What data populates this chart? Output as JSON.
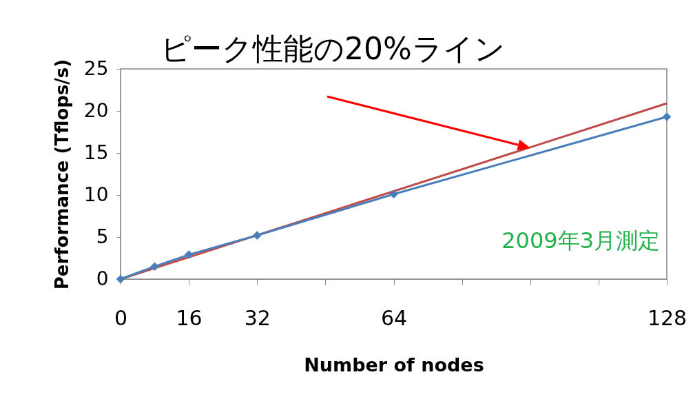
{
  "chart_data": {
    "type": "line",
    "xlabel": "Number of nodes",
    "ylabel": "Performance (Tflops/s)",
    "xlim": [
      0,
      128
    ],
    "xticks": [
      0,
      16,
      32,
      {
        "value": 48,
        "label": null
      },
      64,
      {
        "value": 80,
        "label": null
      },
      {
        "value": 96,
        "label": null
      },
      {
        "value": 112,
        "label": null
      },
      128
    ],
    "ylim": [
      0,
      25
    ],
    "yticks": [
      0,
      5,
      10,
      15,
      20,
      25
    ],
    "grid": false,
    "series": [
      {
        "color": "#be4b48",
        "x": [
          0,
          128
        ],
        "values": [
          0,
          20.9
        ],
        "marker": "none"
      },
      {
        "color": "#4a7ebb",
        "x": [
          0,
          8,
          16,
          32,
          64,
          128
        ],
        "values": [
          0,
          1.5,
          2.9,
          5.2,
          10.1,
          19.3
        ],
        "marker": "diamond"
      }
    ],
    "annotations": [
      {
        "text": "ピーク性能の20%ライン",
        "x": 96,
        "y": 15.6
      },
      "2009年3月測定"
    ]
  }
}
